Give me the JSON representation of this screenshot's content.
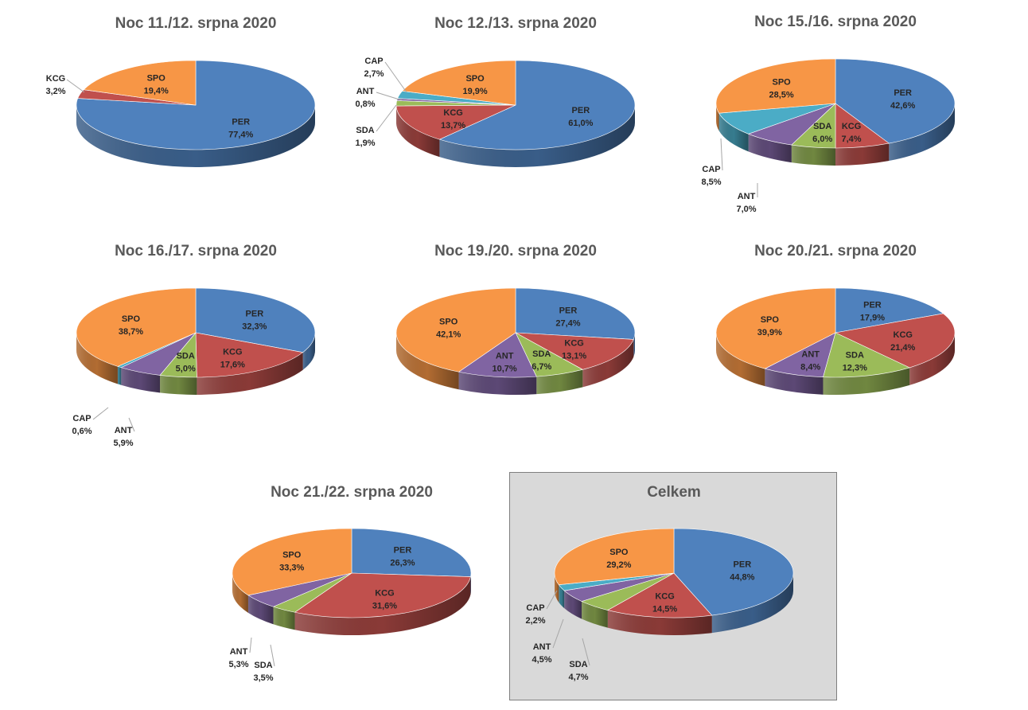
{
  "colors": {
    "PER": "#4f81bd",
    "KCG": "#c0504d",
    "SDA": "#9bbb59",
    "ANT": "#8064a2",
    "CAP": "#4bacc6",
    "SPO": "#f79646"
  },
  "chart_data": [
    {
      "type": "pie",
      "title": "Noc 11./12. srpna 2020",
      "slices": [
        {
          "name": "PER",
          "value": 77.4,
          "label": "77,4%"
        },
        {
          "name": "KCG",
          "value": 3.2,
          "label": "3,2%"
        },
        {
          "name": "SPO",
          "value": 19.4,
          "label": "19,4%"
        }
      ]
    },
    {
      "type": "pie",
      "title": "Noc 12./13. srpna 2020",
      "slices": [
        {
          "name": "PER",
          "value": 61.0,
          "label": "61,0%"
        },
        {
          "name": "KCG",
          "value": 13.7,
          "label": "13,7%"
        },
        {
          "name": "SDA",
          "value": 1.9,
          "label": "1,9%"
        },
        {
          "name": "ANT",
          "value": 0.8,
          "label": "0,8%"
        },
        {
          "name": "CAP",
          "value": 2.7,
          "label": "2,7%"
        },
        {
          "name": "SPO",
          "value": 19.9,
          "label": "19,9%"
        }
      ]
    },
    {
      "type": "pie",
      "title": "Noc 15./16. srpna 2020",
      "slices": [
        {
          "name": "PER",
          "value": 42.6,
          "label": "42,6%"
        },
        {
          "name": "KCG",
          "value": 7.4,
          "label": "7,4%"
        },
        {
          "name": "SDA",
          "value": 6.0,
          "label": "6,0%"
        },
        {
          "name": "ANT",
          "value": 7.0,
          "label": "7,0%"
        },
        {
          "name": "CAP",
          "value": 8.5,
          "label": "8,5%"
        },
        {
          "name": "SPO",
          "value": 28.5,
          "label": "28,5%"
        }
      ]
    },
    {
      "type": "pie",
      "title": "Noc 16./17. srpna 2020",
      "slices": [
        {
          "name": "PER",
          "value": 32.3,
          "label": "32,3%"
        },
        {
          "name": "KCG",
          "value": 17.6,
          "label": "17,6%"
        },
        {
          "name": "SDA",
          "value": 5.0,
          "label": "5,0%"
        },
        {
          "name": "ANT",
          "value": 5.9,
          "label": "5,9%"
        },
        {
          "name": "CAP",
          "value": 0.6,
          "label": "0,6%"
        },
        {
          "name": "SPO",
          "value": 38.7,
          "label": "38,7%"
        }
      ]
    },
    {
      "type": "pie",
      "title": "Noc 19./20. srpna 2020",
      "slices": [
        {
          "name": "PER",
          "value": 27.4,
          "label": "27,4%"
        },
        {
          "name": "KCG",
          "value": 13.1,
          "label": "13,1%"
        },
        {
          "name": "SDA",
          "value": 6.7,
          "label": "6,7%"
        },
        {
          "name": "ANT",
          "value": 10.7,
          "label": "10,7%"
        },
        {
          "name": "SPO",
          "value": 42.1,
          "label": "42,1%"
        }
      ]
    },
    {
      "type": "pie",
      "title": "Noc 20./21. srpna 2020",
      "slices": [
        {
          "name": "PER",
          "value": 17.9,
          "label": "17,9%"
        },
        {
          "name": "KCG",
          "value": 21.4,
          "label": "21,4%"
        },
        {
          "name": "SDA",
          "value": 12.3,
          "label": "12,3%"
        },
        {
          "name": "ANT",
          "value": 8.4,
          "label": "8,4%"
        },
        {
          "name": "SPO",
          "value": 39.9,
          "label": "39,9%"
        }
      ]
    },
    {
      "type": "pie",
      "title": "Noc 21./22. srpna 2020",
      "slices": [
        {
          "name": "PER",
          "value": 26.3,
          "label": "26,3%"
        },
        {
          "name": "KCG",
          "value": 31.6,
          "label": "31,6%"
        },
        {
          "name": "SDA",
          "value": 3.5,
          "label": "3,5%"
        },
        {
          "name": "ANT",
          "value": 5.3,
          "label": "5,3%"
        },
        {
          "name": "SPO",
          "value": 33.3,
          "label": "33,3%"
        }
      ]
    },
    {
      "type": "pie",
      "title": "Celkem",
      "slices": [
        {
          "name": "PER",
          "value": 44.8,
          "label": "44,8%"
        },
        {
          "name": "KCG",
          "value": 14.5,
          "label": "14,5%"
        },
        {
          "name": "SDA",
          "value": 4.7,
          "label": "4,7%"
        },
        {
          "name": "ANT",
          "value": 4.5,
          "label": "4,5%"
        },
        {
          "name": "CAP",
          "value": 2.2,
          "label": "2,2%"
        },
        {
          "name": "SPO",
          "value": 29.2,
          "label": "29,2%"
        }
      ]
    }
  ]
}
